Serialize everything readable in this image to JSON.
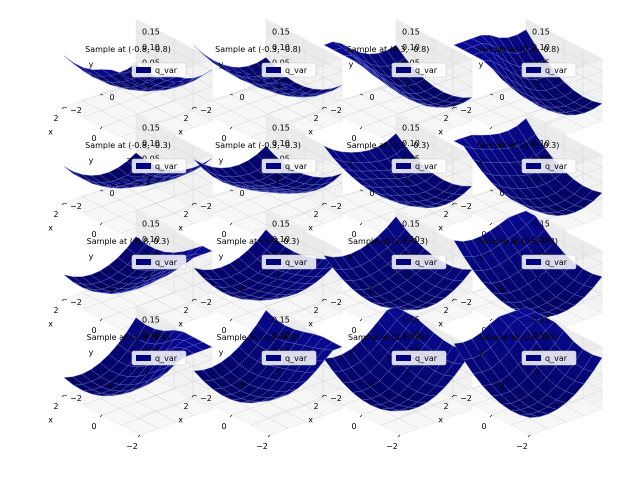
{
  "figure": {
    "panel_count": 16,
    "grid": "4x4"
  },
  "chart_data": [
    {
      "type": "surface",
      "title": "Sample at (-0.8, -0.8)",
      "legend": [
        "q_var"
      ],
      "xlabel": "x",
      "ylabel": "y",
      "x_ticks": [
        "−2",
        "0",
        "2"
      ],
      "y_ticks": [
        "−2",
        "0",
        "2"
      ],
      "z_ticks": [
        "0.05",
        "0.10",
        "0.15"
      ],
      "color": "#00007a",
      "mesh_color": "#6d78c8",
      "surface": {
        "amplitude": 0.08,
        "shift_x": 0.55,
        "shift_y": 0.55
      }
    },
    {
      "type": "surface",
      "title": "Sample at (-0.3, -0.8)",
      "legend": [
        "q_var"
      ],
      "xlabel": "x",
      "ylabel": "y",
      "x_ticks": [
        "−2",
        "0",
        "2"
      ],
      "y_ticks": [
        "−2",
        "0",
        "2"
      ],
      "z_ticks": [
        "0.05",
        "0.10",
        "0.15"
      ],
      "color": "#00007a",
      "mesh_color": "#6d78c8",
      "surface": {
        "amplitude": 0.09,
        "shift_x": 0.2,
        "shift_y": 0.6
      }
    },
    {
      "type": "surface",
      "title": "Sample at (0.3, -0.8)",
      "legend": [
        "q_var"
      ],
      "xlabel": "x",
      "ylabel": "y",
      "x_ticks": [
        "−2",
        "0",
        "2"
      ],
      "y_ticks": [
        "−2",
        "0",
        "2"
      ],
      "z_ticks": [
        "0.05",
        "0.10",
        "0.15"
      ],
      "color": "#00007a",
      "mesh_color": "#6d78c8",
      "surface": {
        "amplitude": 0.1,
        "shift_x": -0.2,
        "shift_y": 0.6
      }
    },
    {
      "type": "surface",
      "title": "Sample at (0.8, -0.8)",
      "legend": [
        "q_var"
      ],
      "xlabel": "x",
      "ylabel": "y",
      "x_ticks": [
        "−2",
        "0",
        "2"
      ],
      "y_ticks": [
        "−2",
        "0",
        "2"
      ],
      "z_ticks": [
        "0.05",
        "0.10",
        "0.15"
      ],
      "color": "#00007a",
      "mesh_color": "#6d78c8",
      "surface": {
        "amplitude": 0.1,
        "shift_x": -0.55,
        "shift_y": 0.55
      }
    },
    {
      "type": "surface",
      "title": "Sample at (-0.8, -0.3)",
      "legend": [
        "q_var"
      ],
      "xlabel": "x",
      "ylabel": "y",
      "x_ticks": [
        "−2",
        "0",
        "2"
      ],
      "y_ticks": [
        "−2",
        "0",
        "2"
      ],
      "z_ticks": [
        "0.05",
        "0.10",
        "0.15"
      ],
      "color": "#00007a",
      "mesh_color": "#6d78c8",
      "surface": {
        "amplitude": 0.09,
        "shift_x": 0.55,
        "shift_y": 0.2
      }
    },
    {
      "type": "surface",
      "title": "Sample at (-0.3, -0.3)",
      "legend": [
        "q_var"
      ],
      "xlabel": "x",
      "ylabel": "y",
      "x_ticks": [
        "−2",
        "0",
        "2"
      ],
      "y_ticks": [
        "−2",
        "0",
        "2"
      ],
      "z_ticks": [
        "0.05",
        "0.10",
        "0.15"
      ],
      "color": "#00007a",
      "mesh_color": "#6d78c8",
      "surface": {
        "amplitude": 0.08,
        "shift_x": 0.2,
        "shift_y": 0.2
      }
    },
    {
      "type": "surface",
      "title": "Sample at (0.3, -0.3)",
      "legend": [
        "q_var"
      ],
      "xlabel": "x",
      "ylabel": "y",
      "x_ticks": [
        "−2",
        "0",
        "2"
      ],
      "y_ticks": [
        "−2",
        "0",
        "2"
      ],
      "z_ticks": [
        "0.05",
        "0.10",
        "0.15"
      ],
      "color": "#00007a",
      "mesh_color": "#6d78c8",
      "surface": {
        "amplitude": 0.09,
        "shift_x": -0.2,
        "shift_y": 0.2
      }
    },
    {
      "type": "surface",
      "title": "Sample at (0.8, -0.3)",
      "legend": [
        "q_var"
      ],
      "xlabel": "x",
      "ylabel": "y",
      "x_ticks": [
        "−2",
        "0",
        "2"
      ],
      "y_ticks": [
        "−2",
        "0",
        "2"
      ],
      "z_ticks": [
        "0.05",
        "0.10"
      ],
      "color": "#00007a",
      "mesh_color": "#6d78c8",
      "surface": {
        "amplitude": 0.07,
        "shift_x": -0.55,
        "shift_y": 0.2
      }
    },
    {
      "type": "surface",
      "title": "Sample at (-0.8, 0.3)",
      "legend": [
        "q_var"
      ],
      "xlabel": "x",
      "ylabel": "y",
      "x_ticks": [
        "−2",
        "0",
        "2"
      ],
      "y_ticks": [
        "−2",
        "0",
        "2"
      ],
      "z_ticks": [
        "0.05",
        "0.10",
        "0.15"
      ],
      "color": "#00007a",
      "mesh_color": "#6d78c8",
      "surface": {
        "amplitude": 0.08,
        "shift_x": 0.55,
        "shift_y": -0.2
      }
    },
    {
      "type": "surface",
      "title": "Sample at (-0.3, 0.3)",
      "legend": [
        "q_var"
      ],
      "xlabel": "x",
      "ylabel": "y",
      "x_ticks": [
        "−2",
        "0",
        "2"
      ],
      "y_ticks": [
        "−2",
        "0",
        "2"
      ],
      "z_ticks": [
        "0.05",
        "0.10",
        "0.15"
      ],
      "color": "#00007a",
      "mesh_color": "#6d78c8",
      "surface": {
        "amplitude": 0.07,
        "shift_x": 0.2,
        "shift_y": -0.2
      }
    },
    {
      "type": "surface",
      "title": "Sample at (0.3, 0.3)",
      "legend": [
        "q_var"
      ],
      "xlabel": "x",
      "ylabel": "y",
      "x_ticks": [
        "−2",
        "0",
        "2"
      ],
      "y_ticks": [
        "−2",
        "0",
        "2"
      ],
      "z_ticks": [
        "0.05",
        "0.10",
        "0.15"
      ],
      "color": "#00007a",
      "mesh_color": "#6d78c8",
      "surface": {
        "amplitude": 0.06,
        "shift_x": -0.2,
        "shift_y": -0.2
      }
    },
    {
      "type": "surface",
      "title": "Sample at (0.8, 0.3)",
      "legend": [
        "q_var"
      ],
      "xlabel": "x",
      "ylabel": "y",
      "x_ticks": [
        "−2",
        "0",
        "2"
      ],
      "y_ticks": [
        "−2",
        "0",
        "2"
      ],
      "z_ticks": [
        "0.05",
        "0.10",
        "0.15"
      ],
      "color": "#00007a",
      "mesh_color": "#6d78c8",
      "surface": {
        "amplitude": 0.07,
        "shift_x": -0.55,
        "shift_y": -0.2
      }
    },
    {
      "type": "surface",
      "title": "Sample at (-0.8, 0.8)",
      "legend": [
        "q_var"
      ],
      "xlabel": "x",
      "ylabel": "y",
      "x_ticks": [
        "−2",
        "0",
        "2"
      ],
      "y_ticks": [
        "−2",
        "0",
        "2"
      ],
      "z_ticks": [
        "0.05",
        "0.10",
        "0.15"
      ],
      "color": "#00007a",
      "mesh_color": "#6d78c8",
      "surface": {
        "amplitude": 0.1,
        "shift_x": 0.55,
        "shift_y": -0.55
      }
    },
    {
      "type": "surface",
      "title": "Sample at (-0.3, 0.8)",
      "legend": [
        "q_var"
      ],
      "xlabel": "x",
      "ylabel": "y",
      "x_ticks": [
        "−2",
        "0",
        "2"
      ],
      "y_ticks": [
        "−2",
        "0",
        "2"
      ],
      "z_ticks": [
        "0.05",
        "0.10",
        "0.15"
      ],
      "color": "#00007a",
      "mesh_color": "#6d78c8",
      "surface": {
        "amplitude": 0.09,
        "shift_x": 0.2,
        "shift_y": -0.55
      }
    },
    {
      "type": "surface",
      "title": "Sample at (0.3, 0.8)",
      "legend": [
        "q_var"
      ],
      "xlabel": "x",
      "ylabel": "y",
      "x_ticks": [
        "−2",
        "0",
        "2"
      ],
      "y_ticks": [
        "−2",
        "0",
        "2"
      ],
      "z_ticks": [
        "0.05",
        "0.10",
        "0.15"
      ],
      "color": "#00007a",
      "mesh_color": "#6d78c8",
      "surface": {
        "amplitude": 0.08,
        "shift_x": -0.2,
        "shift_y": -0.55
      }
    },
    {
      "type": "surface",
      "title": "Sample at (0.8, 0.8)",
      "legend": [
        "q_var"
      ],
      "xlabel": "x",
      "ylabel": "y",
      "x_ticks": [
        "−2",
        "0",
        "2"
      ],
      "y_ticks": [
        "−2",
        "0",
        "2"
      ],
      "z_ticks": [
        "0.05",
        "0.10",
        "0.15"
      ],
      "color": "#00007a",
      "mesh_color": "#6d78c8",
      "surface": {
        "amplitude": 0.09,
        "shift_x": -0.55,
        "shift_y": -0.55
      }
    }
  ]
}
